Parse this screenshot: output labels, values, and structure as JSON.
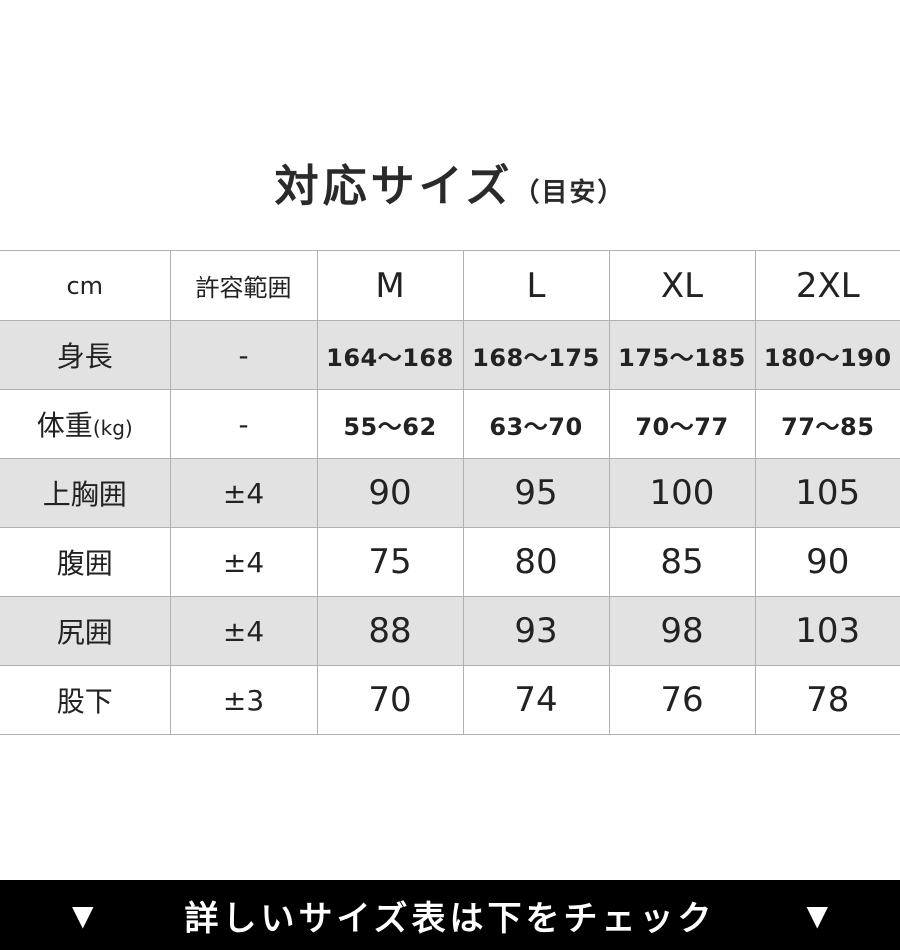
{
  "title": {
    "main": "対応サイズ",
    "sub": "（目安）"
  },
  "table": {
    "header": [
      "cm",
      "許容範囲",
      "M",
      "L",
      "XL",
      "2XL"
    ],
    "rows": [
      {
        "label": "身長",
        "unit": "",
        "tolerance": "-",
        "values": [
          "164～168",
          "168～175",
          "175～185",
          "180～190"
        ],
        "shaded": true
      },
      {
        "label": "体重",
        "unit": "(kg)",
        "tolerance": "-",
        "values": [
          "55～62",
          "63～70",
          "70～77",
          "77～85"
        ],
        "shaded": false
      },
      {
        "label": "上胸囲",
        "unit": "",
        "tolerance": "±4",
        "values": [
          "90",
          "95",
          "100",
          "105"
        ],
        "shaded": true
      },
      {
        "label": "腹囲",
        "unit": "",
        "tolerance": "±4",
        "values": [
          "75",
          "80",
          "85",
          "90"
        ],
        "shaded": false
      },
      {
        "label": "尻囲",
        "unit": "",
        "tolerance": "±4",
        "values": [
          "88",
          "93",
          "98",
          "103"
        ],
        "shaded": true
      },
      {
        "label": "股下",
        "unit": "",
        "tolerance": "±3",
        "values": [
          "70",
          "74",
          "76",
          "78"
        ],
        "shaded": false
      }
    ]
  },
  "banner": {
    "text": "詳しいサイズ表は下をチェック",
    "left_icon": "▼",
    "right_icon": "▼"
  },
  "colors": {
    "shaded_row": "#e2e2e2",
    "banner_bg": "#000000",
    "banner_text": "#ffffff"
  }
}
